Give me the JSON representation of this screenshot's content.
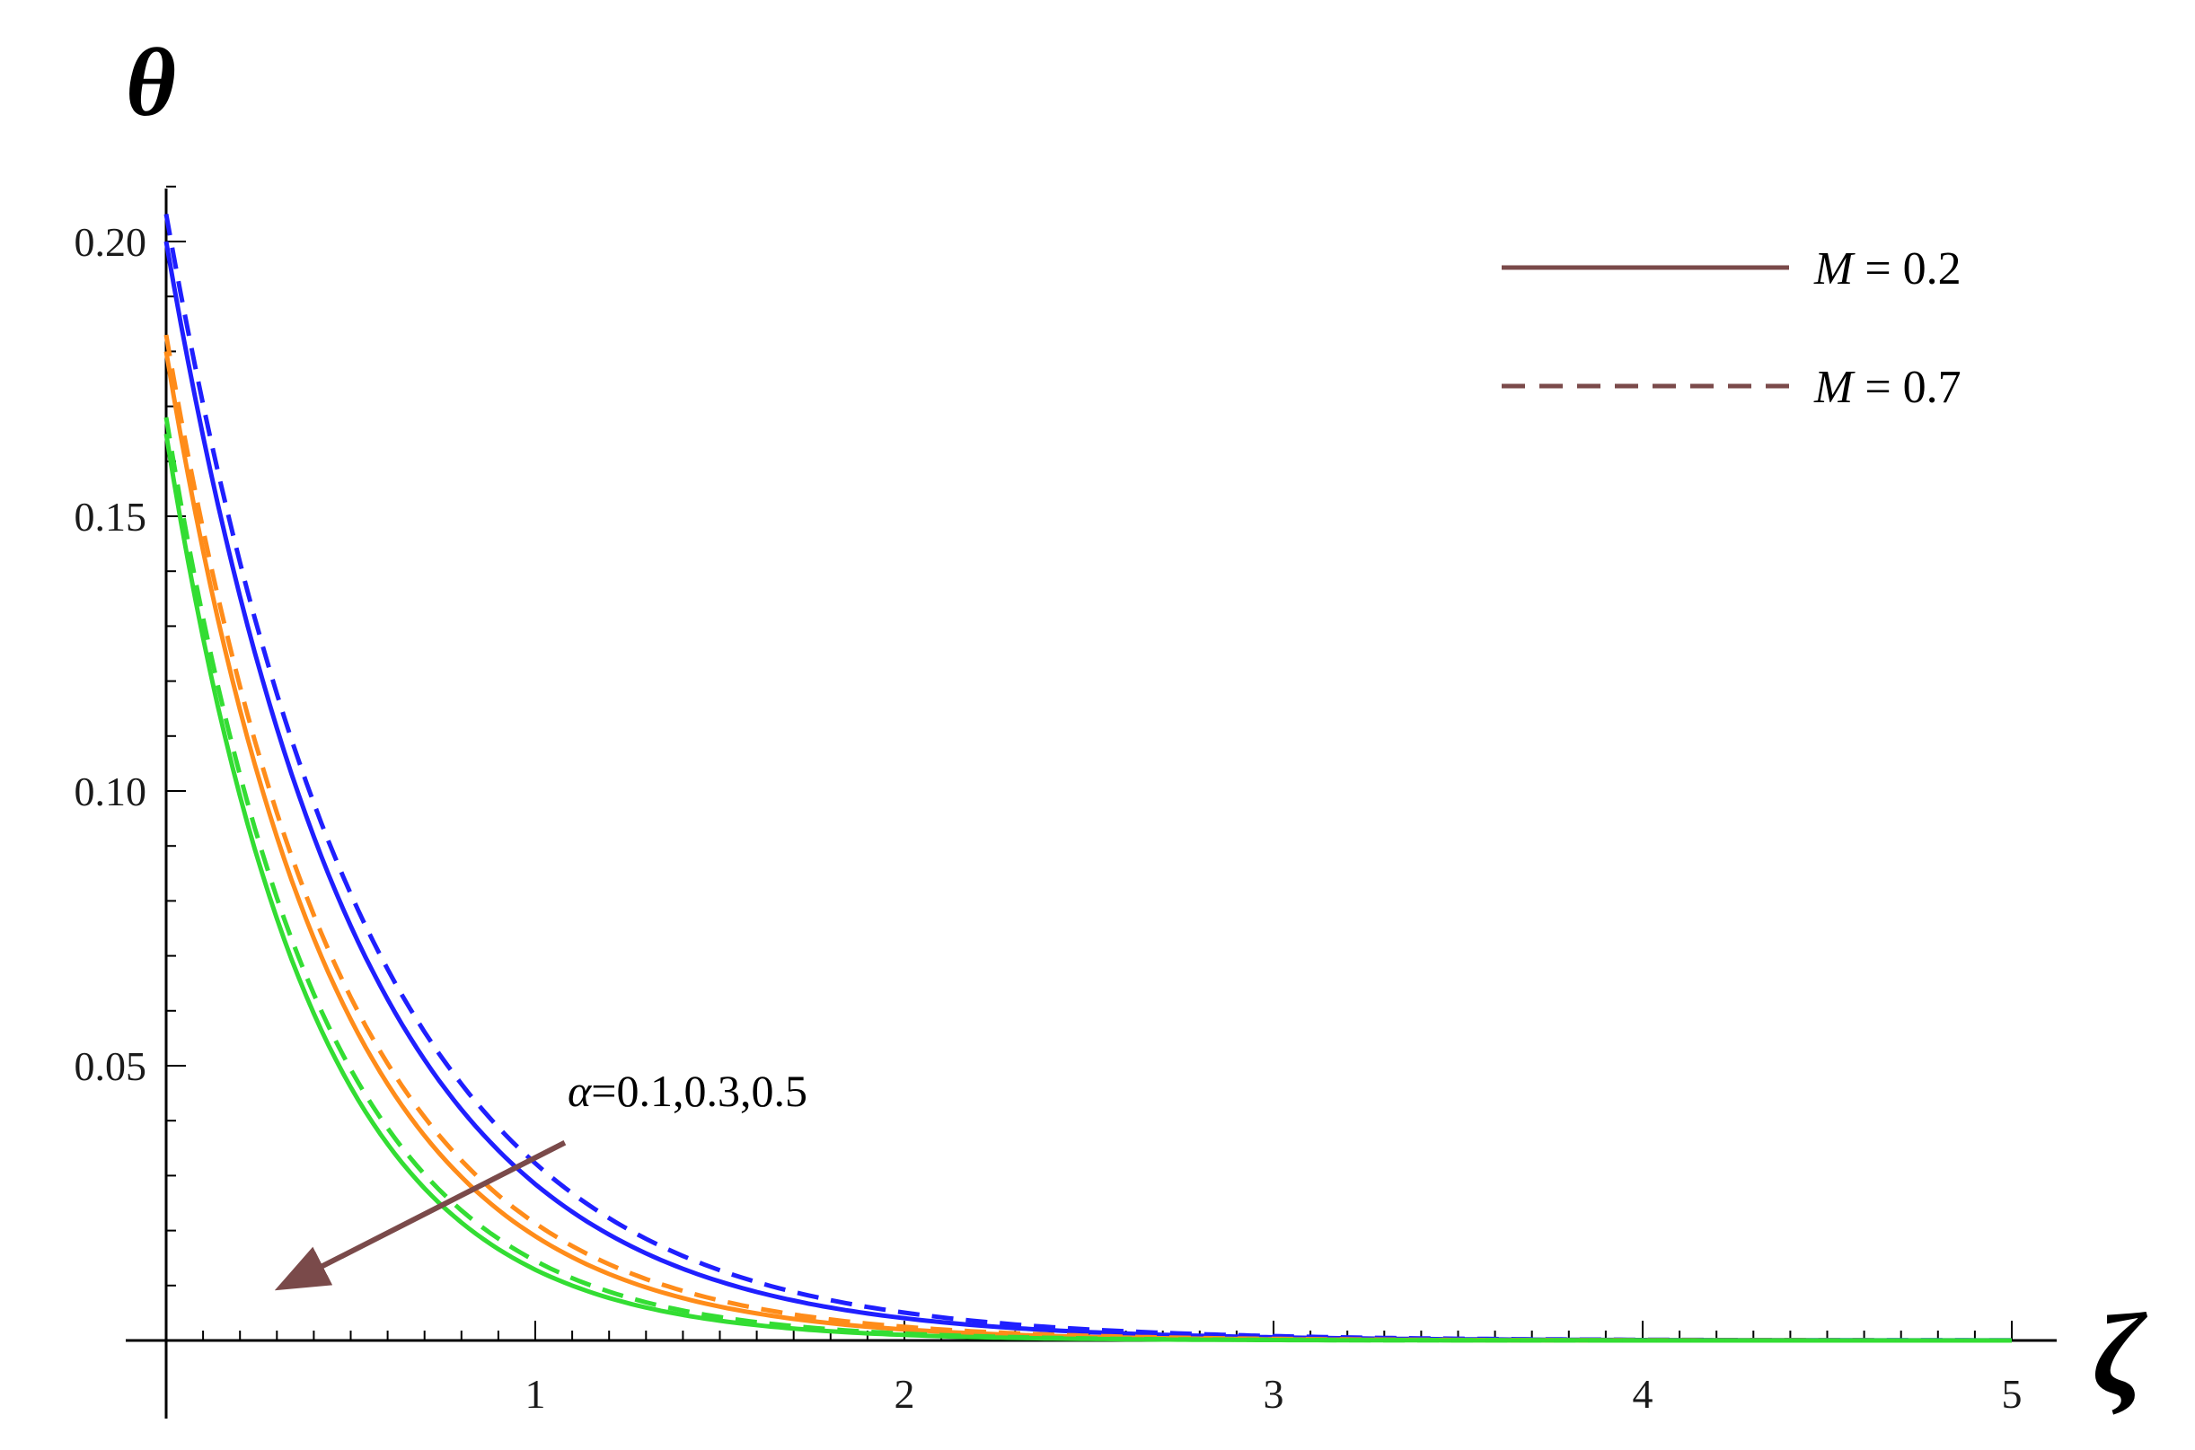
{
  "chart_data": {
    "type": "line",
    "title": "",
    "xlabel": "ζ",
    "ylabel": "θ",
    "xlim": [
      0,
      5
    ],
    "ylim": [
      0,
      0.21
    ],
    "x_ticks": [
      "1",
      "2",
      "3",
      "4",
      "5"
    ],
    "y_ticks": [
      "0.05",
      "0.10",
      "0.15",
      "0.20"
    ],
    "x_tick_values": [
      1,
      2,
      3,
      4,
      5
    ],
    "y_tick_values": [
      0.05,
      0.1,
      0.15,
      0.2
    ],
    "grid": false,
    "legend_position": "top-right",
    "legend": [
      {
        "label_var": "M",
        "label_rest": " = 0.2",
        "style": "solid"
      },
      {
        "label_var": "M",
        "label_rest": " = 0.7",
        "style": "dashed"
      }
    ],
    "legend_color": "#7a4a4a",
    "annotation": {
      "text_var": "α",
      "text_rest": "=0.1,0.3,0.5",
      "arrow_from": [
        1.08,
        0.036
      ],
      "arrow_to": [
        0.32,
        0.01
      ],
      "arrow_color": "#7a4a4a"
    },
    "series": [
      {
        "group": "α=0.1",
        "M": 0.2,
        "style": "solid",
        "color": "#1f1fff",
        "theta0": 0.2,
        "decay": 1.95
      },
      {
        "group": "α=0.1",
        "M": 0.7,
        "style": "dashed",
        "color": "#1f1fff",
        "theta0": 0.205,
        "decay": 1.85
      },
      {
        "group": "α=0.3",
        "M": 0.2,
        "style": "solid",
        "color": "#ff8c1a",
        "theta0": 0.18,
        "decay": 2.25
      },
      {
        "group": "α=0.3",
        "M": 0.7,
        "style": "dashed",
        "color": "#ff8c1a",
        "theta0": 0.183,
        "decay": 2.15
      },
      {
        "group": "α=0.5",
        "M": 0.2,
        "style": "solid",
        "color": "#33dd33",
        "theta0": 0.165,
        "decay": 2.55
      },
      {
        "group": "α=0.5",
        "M": 0.7,
        "style": "dashed",
        "color": "#33dd33",
        "theta0": 0.168,
        "decay": 2.45
      }
    ]
  }
}
